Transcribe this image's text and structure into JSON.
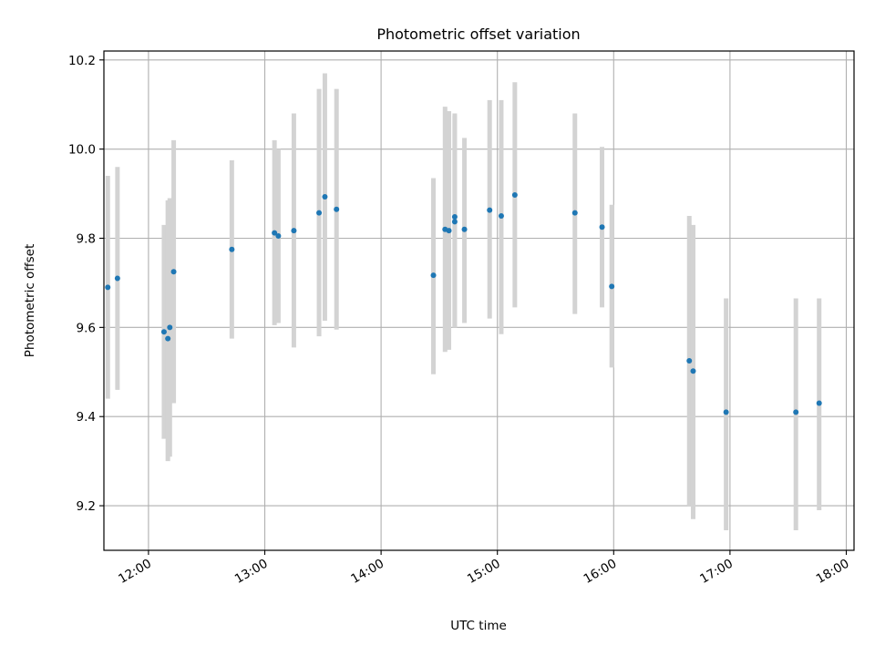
{
  "chart_data": {
    "type": "scatter",
    "title": "Photometric offset variation",
    "xlabel": "UTC time",
    "ylabel": "Photometric offset",
    "xlim": [
      "11:37",
      "18:04"
    ],
    "ylim": [
      9.1,
      10.22
    ],
    "xticks": [
      "12:00",
      "13:00",
      "14:00",
      "15:00",
      "16:00",
      "17:00",
      "18:00"
    ],
    "yticks": [
      9.2,
      9.4,
      9.6,
      9.8,
      10.0,
      10.2
    ],
    "grid": true,
    "colors": {
      "point": "#1f77b4",
      "errorbar": "#d3d3d3",
      "grid": "#b0b0b0"
    },
    "points": [
      {
        "x": "11:39",
        "y": 9.69,
        "ylow": 9.44,
        "yhigh": 9.94
      },
      {
        "x": "11:44",
        "y": 9.71,
        "ylow": 9.46,
        "yhigh": 9.96
      },
      {
        "x": "12:08",
        "y": 9.59,
        "ylow": 9.35,
        "yhigh": 9.83
      },
      {
        "x": "12:10",
        "y": 9.575,
        "ylow": 9.3,
        "yhigh": 9.885
      },
      {
        "x": "12:11",
        "y": 9.6,
        "ylow": 9.31,
        "yhigh": 9.89
      },
      {
        "x": "12:13",
        "y": 9.725,
        "ylow": 9.43,
        "yhigh": 10.02
      },
      {
        "x": "12:43",
        "y": 9.775,
        "ylow": 9.575,
        "yhigh": 9.975
      },
      {
        "x": "13:05",
        "y": 9.812,
        "ylow": 9.605,
        "yhigh": 10.02
      },
      {
        "x": "13:07",
        "y": 9.805,
        "ylow": 9.61,
        "yhigh": 10.0
      },
      {
        "x": "13:15",
        "y": 9.817,
        "ylow": 9.555,
        "yhigh": 10.08
      },
      {
        "x": "13:28",
        "y": 9.857,
        "ylow": 9.58,
        "yhigh": 10.135
      },
      {
        "x": "13:31",
        "y": 9.893,
        "ylow": 9.615,
        "yhigh": 10.17
      },
      {
        "x": "13:37",
        "y": 9.865,
        "ylow": 9.595,
        "yhigh": 10.135
      },
      {
        "x": "14:27",
        "y": 9.717,
        "ylow": 9.495,
        "yhigh": 9.935
      },
      {
        "x": "14:33",
        "y": 9.82,
        "ylow": 9.545,
        "yhigh": 10.095
      },
      {
        "x": "14:35",
        "y": 9.817,
        "ylow": 9.55,
        "yhigh": 10.085
      },
      {
        "x": "14:38",
        "y": 9.848,
        "ylow": 9.6,
        "yhigh": 10.08
      },
      {
        "x": "14:38",
        "y": 9.837,
        "ylow": 9.6,
        "yhigh": 10.075
      },
      {
        "x": "14:43",
        "y": 9.82,
        "ylow": 9.61,
        "yhigh": 10.025
      },
      {
        "x": "14:56",
        "y": 9.863,
        "ylow": 9.62,
        "yhigh": 10.11
      },
      {
        "x": "15:02",
        "y": 9.85,
        "ylow": 9.585,
        "yhigh": 10.11
      },
      {
        "x": "15:09",
        "y": 9.897,
        "ylow": 9.645,
        "yhigh": 10.15
      },
      {
        "x": "15:40",
        "y": 9.857,
        "ylow": 9.63,
        "yhigh": 10.08
      },
      {
        "x": "15:54",
        "y": 9.825,
        "ylow": 9.645,
        "yhigh": 10.005
      },
      {
        "x": "15:59",
        "y": 9.692,
        "ylow": 9.51,
        "yhigh": 9.875
      },
      {
        "x": "16:39",
        "y": 9.525,
        "ylow": 9.2,
        "yhigh": 9.85
      },
      {
        "x": "16:41",
        "y": 9.502,
        "ylow": 9.17,
        "yhigh": 9.83
      },
      {
        "x": "16:58",
        "y": 9.41,
        "ylow": 9.145,
        "yhigh": 9.665
      },
      {
        "x": "17:34",
        "y": 9.41,
        "ylow": 9.145,
        "yhigh": 9.665
      },
      {
        "x": "17:46",
        "y": 9.43,
        "ylow": 9.19,
        "yhigh": 9.665
      }
    ]
  }
}
